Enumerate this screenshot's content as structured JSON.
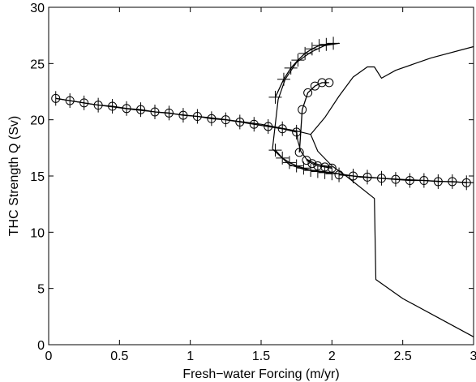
{
  "chart_data": {
    "type": "line",
    "title": "",
    "xlabel": "Fresh−water Forcing (m/yr)",
    "ylabel": "THC Strength Q (Sv)",
    "xlim": [
      0,
      3
    ],
    "ylim": [
      0,
      30
    ],
    "x_ticks": [
      0,
      0.5,
      1,
      1.5,
      2,
      2.5,
      3
    ],
    "y_ticks": [
      0,
      5,
      10,
      15,
      20,
      25,
      30
    ],
    "x_tick_labels": [
      "0",
      "0.5",
      "1",
      "1.5",
      "2",
      "2.5",
      "3"
    ],
    "y_tick_labels": [
      "0",
      "5",
      "10",
      "15",
      "20",
      "25",
      "30"
    ],
    "grid": false,
    "line_color": "#000000",
    "series": [
      {
        "marker": "none",
        "points": [
          [
            0.05,
            21.9
          ],
          [
            0.3,
            21.4
          ],
          [
            0.6,
            20.9
          ],
          [
            0.9,
            20.5
          ],
          [
            1.2,
            20.1
          ],
          [
            1.5,
            19.6
          ],
          [
            1.75,
            19.0
          ],
          [
            1.85,
            18.7
          ],
          [
            1.9,
            17.2
          ],
          [
            2.0,
            15.9
          ],
          [
            2.1,
            15.0
          ],
          [
            2.3,
            13.0
          ],
          [
            2.31,
            5.8
          ],
          [
            2.5,
            4.1
          ],
          [
            2.75,
            2.4
          ],
          [
            3.0,
            0.7
          ]
        ]
      },
      {
        "marker": "none",
        "points": [
          [
            1.85,
            18.7
          ],
          [
            1.95,
            20.2
          ],
          [
            2.05,
            22.1
          ],
          [
            2.15,
            23.8
          ],
          [
            2.25,
            24.7
          ],
          [
            2.3,
            24.7
          ],
          [
            2.35,
            23.7
          ],
          [
            2.45,
            24.4
          ],
          [
            2.7,
            25.5
          ],
          [
            3.0,
            26.5
          ]
        ]
      },
      {
        "marker": "none",
        "points": [
          [
            1.58,
            17.4
          ],
          [
            1.62,
            21.8
          ],
          [
            1.67,
            23.6
          ],
          [
            1.75,
            25.1
          ],
          [
            1.85,
            26.0
          ],
          [
            1.95,
            26.6
          ],
          [
            2.05,
            26.8
          ]
        ]
      },
      {
        "marker": "none",
        "points": [
          [
            1.58,
            17.4
          ],
          [
            1.7,
            16.0
          ],
          [
            1.8,
            15.6
          ],
          [
            2.0,
            15.3
          ],
          [
            2.2,
            14.9
          ],
          [
            2.5,
            14.7
          ],
          [
            2.8,
            14.5
          ],
          [
            3.0,
            14.4
          ]
        ]
      },
      {
        "marker": "none",
        "points": [
          [
            1.75,
            19.0
          ],
          [
            1.76,
            18.1
          ],
          [
            1.78,
            17.2
          ],
          [
            1.82,
            16.5
          ],
          [
            1.88,
            16.1
          ],
          [
            1.95,
            15.9
          ],
          [
            2.0,
            15.8
          ]
        ]
      },
      {
        "marker": "circle",
        "points": [
          [
            1.77,
            17.1
          ],
          [
            1.79,
            20.9
          ],
          [
            1.83,
            22.4
          ],
          [
            1.88,
            23.0
          ],
          [
            1.93,
            23.3
          ],
          [
            1.98,
            23.3
          ]
        ]
      },
      {
        "marker": "plus",
        "points": [
          [
            1.6,
            22.0
          ],
          [
            1.66,
            23.6
          ],
          [
            1.71,
            24.6
          ],
          [
            1.76,
            25.3
          ],
          [
            1.81,
            25.9
          ],
          [
            1.86,
            26.3
          ],
          [
            1.91,
            26.6
          ],
          [
            1.96,
            26.7
          ],
          [
            2.01,
            26.8
          ]
        ]
      },
      {
        "marker": "circle-plus",
        "points": [
          [
            0.05,
            21.9
          ],
          [
            0.15,
            21.7
          ],
          [
            0.25,
            21.5
          ],
          [
            0.35,
            21.3
          ],
          [
            0.45,
            21.2
          ],
          [
            0.55,
            21.0
          ],
          [
            0.65,
            20.9
          ],
          [
            0.75,
            20.7
          ],
          [
            0.85,
            20.6
          ],
          [
            0.95,
            20.4
          ],
          [
            1.05,
            20.3
          ],
          [
            1.15,
            20.1
          ],
          [
            1.25,
            20.0
          ],
          [
            1.35,
            19.8
          ],
          [
            1.45,
            19.6
          ],
          [
            1.55,
            19.4
          ],
          [
            1.65,
            19.2
          ],
          [
            1.75,
            18.9
          ]
        ]
      },
      {
        "marker": "plus",
        "points": [
          [
            1.6,
            17.3
          ],
          [
            1.65,
            16.6
          ],
          [
            1.7,
            16.2
          ],
          [
            1.75,
            15.9
          ],
          [
            1.8,
            15.7
          ],
          [
            1.85,
            15.5
          ],
          [
            1.9,
            15.4
          ],
          [
            1.95,
            15.3
          ],
          [
            2.0,
            15.2
          ]
        ]
      },
      {
        "marker": "circle",
        "points": [
          [
            1.82,
            16.4
          ],
          [
            1.86,
            16.1
          ],
          [
            1.9,
            15.9
          ],
          [
            1.95,
            15.8
          ],
          [
            2.0,
            15.7
          ]
        ]
      },
      {
        "marker": "circle-plus",
        "points": [
          [
            2.05,
            15.1
          ],
          [
            2.15,
            15.0
          ],
          [
            2.25,
            14.9
          ],
          [
            2.35,
            14.8
          ],
          [
            2.45,
            14.7
          ],
          [
            2.55,
            14.6
          ],
          [
            2.65,
            14.6
          ],
          [
            2.75,
            14.5
          ],
          [
            2.85,
            14.5
          ],
          [
            2.95,
            14.4
          ]
        ]
      }
    ]
  }
}
